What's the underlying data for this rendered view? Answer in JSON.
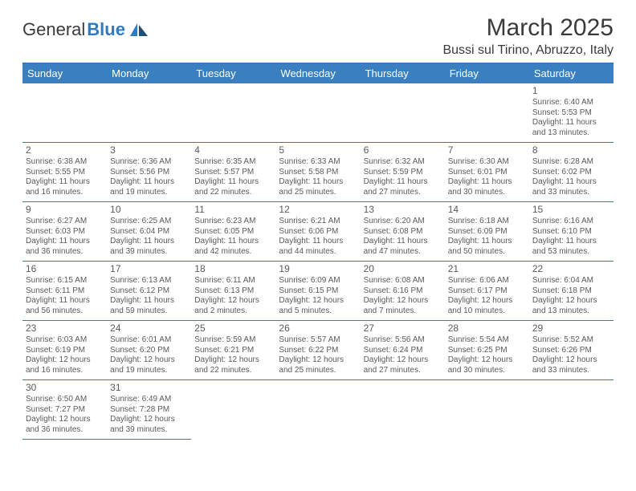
{
  "brand": {
    "part1": "General",
    "part2": "Blue"
  },
  "title": "March 2025",
  "location": "Bussi sul Tirino, Abruzzo, Italy",
  "colors": {
    "header_bg": "#3a80c1",
    "border": "#2f7ac0",
    "text": "#5a5a5a",
    "bg": "#ffffff"
  },
  "daynames": [
    "Sunday",
    "Monday",
    "Tuesday",
    "Wednesday",
    "Thursday",
    "Friday",
    "Saturday"
  ],
  "leading_blanks": 6,
  "days": [
    {
      "n": "1",
      "sr": "6:40 AM",
      "ss": "5:53 PM",
      "dh": "11",
      "dm": "13"
    },
    {
      "n": "2",
      "sr": "6:38 AM",
      "ss": "5:55 PM",
      "dh": "11",
      "dm": "16"
    },
    {
      "n": "3",
      "sr": "6:36 AM",
      "ss": "5:56 PM",
      "dh": "11",
      "dm": "19"
    },
    {
      "n": "4",
      "sr": "6:35 AM",
      "ss": "5:57 PM",
      "dh": "11",
      "dm": "22"
    },
    {
      "n": "5",
      "sr": "6:33 AM",
      "ss": "5:58 PM",
      "dh": "11",
      "dm": "25"
    },
    {
      "n": "6",
      "sr": "6:32 AM",
      "ss": "5:59 PM",
      "dh": "11",
      "dm": "27"
    },
    {
      "n": "7",
      "sr": "6:30 AM",
      "ss": "6:01 PM",
      "dh": "11",
      "dm": "30"
    },
    {
      "n": "8",
      "sr": "6:28 AM",
      "ss": "6:02 PM",
      "dh": "11",
      "dm": "33"
    },
    {
      "n": "9",
      "sr": "6:27 AM",
      "ss": "6:03 PM",
      "dh": "11",
      "dm": "36"
    },
    {
      "n": "10",
      "sr": "6:25 AM",
      "ss": "6:04 PM",
      "dh": "11",
      "dm": "39"
    },
    {
      "n": "11",
      "sr": "6:23 AM",
      "ss": "6:05 PM",
      "dh": "11",
      "dm": "42"
    },
    {
      "n": "12",
      "sr": "6:21 AM",
      "ss": "6:06 PM",
      "dh": "11",
      "dm": "44"
    },
    {
      "n": "13",
      "sr": "6:20 AM",
      "ss": "6:08 PM",
      "dh": "11",
      "dm": "47"
    },
    {
      "n": "14",
      "sr": "6:18 AM",
      "ss": "6:09 PM",
      "dh": "11",
      "dm": "50"
    },
    {
      "n": "15",
      "sr": "6:16 AM",
      "ss": "6:10 PM",
      "dh": "11",
      "dm": "53"
    },
    {
      "n": "16",
      "sr": "6:15 AM",
      "ss": "6:11 PM",
      "dh": "11",
      "dm": "56"
    },
    {
      "n": "17",
      "sr": "6:13 AM",
      "ss": "6:12 PM",
      "dh": "11",
      "dm": "59"
    },
    {
      "n": "18",
      "sr": "6:11 AM",
      "ss": "6:13 PM",
      "dh": "12",
      "dm": "2"
    },
    {
      "n": "19",
      "sr": "6:09 AM",
      "ss": "6:15 PM",
      "dh": "12",
      "dm": "5"
    },
    {
      "n": "20",
      "sr": "6:08 AM",
      "ss": "6:16 PM",
      "dh": "12",
      "dm": "7"
    },
    {
      "n": "21",
      "sr": "6:06 AM",
      "ss": "6:17 PM",
      "dh": "12",
      "dm": "10"
    },
    {
      "n": "22",
      "sr": "6:04 AM",
      "ss": "6:18 PM",
      "dh": "12",
      "dm": "13"
    },
    {
      "n": "23",
      "sr": "6:03 AM",
      "ss": "6:19 PM",
      "dh": "12",
      "dm": "16"
    },
    {
      "n": "24",
      "sr": "6:01 AM",
      "ss": "6:20 PM",
      "dh": "12",
      "dm": "19"
    },
    {
      "n": "25",
      "sr": "5:59 AM",
      "ss": "6:21 PM",
      "dh": "12",
      "dm": "22"
    },
    {
      "n": "26",
      "sr": "5:57 AM",
      "ss": "6:22 PM",
      "dh": "12",
      "dm": "25"
    },
    {
      "n": "27",
      "sr": "5:56 AM",
      "ss": "6:24 PM",
      "dh": "12",
      "dm": "27"
    },
    {
      "n": "28",
      "sr": "5:54 AM",
      "ss": "6:25 PM",
      "dh": "12",
      "dm": "30"
    },
    {
      "n": "29",
      "sr": "5:52 AM",
      "ss": "6:26 PM",
      "dh": "12",
      "dm": "33"
    },
    {
      "n": "30",
      "sr": "6:50 AM",
      "ss": "7:27 PM",
      "dh": "12",
      "dm": "36"
    },
    {
      "n": "31",
      "sr": "6:49 AM",
      "ss": "7:28 PM",
      "dh": "12",
      "dm": "39"
    }
  ],
  "labels": {
    "sunrise": "Sunrise: ",
    "sunset": "Sunset: ",
    "daylight_pre": "Daylight: ",
    "hours_word": " hours",
    "and_word": "and ",
    "minutes_word": " minutes."
  }
}
